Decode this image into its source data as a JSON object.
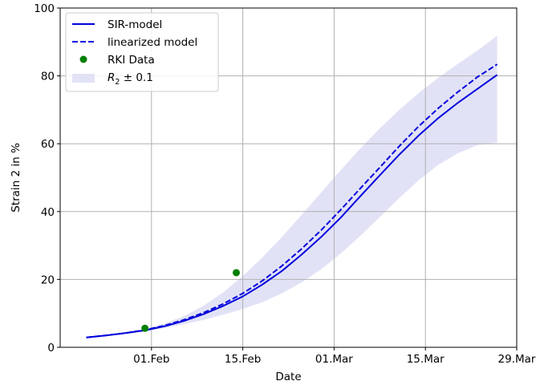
{
  "chart_data": {
    "type": "line",
    "xlabel": "Date",
    "ylabel": "Strain 2 in %",
    "ylim": [
      0,
      100
    ],
    "xlim": [
      "2021-01-18",
      "2021-03-29"
    ],
    "grid": true,
    "legend_position": "top-left",
    "x_ticks": [
      "01.Feb",
      "15.Feb",
      "01.Mar",
      "15.Mar",
      "29.Mar"
    ],
    "x_tick_dates": [
      "2021-02-01",
      "2021-02-15",
      "2021-03-01",
      "2021-03-15",
      "2021-03-29"
    ],
    "y_ticks": [
      0,
      20,
      40,
      60,
      80,
      100
    ],
    "colors": {
      "model": "#0000dd",
      "data": "#008000",
      "band": "#e2e2f7"
    },
    "series": [
      {
        "name": "SIR-model",
        "style": "solid",
        "x": [
          "2021-01-22",
          "2021-01-25",
          "2021-01-28",
          "2021-01-31",
          "2021-02-03",
          "2021-02-06",
          "2021-02-09",
          "2021-02-12",
          "2021-02-15",
          "2021-02-18",
          "2021-02-21",
          "2021-02-24",
          "2021-02-27",
          "2021-03-02",
          "2021-03-05",
          "2021-03-08",
          "2021-03-11",
          "2021-03-14",
          "2021-03-17",
          "2021-03-20",
          "2021-03-23",
          "2021-03-26"
        ],
        "y": [
          2.9,
          3.5,
          4.2,
          5.0,
          6.2,
          7.8,
          9.8,
          12.2,
          15.0,
          18.5,
          22.5,
          27.3,
          32.5,
          38.2,
          44.5,
          50.7,
          56.8,
          62.5,
          67.6,
          72.1,
          76.2,
          80.3
        ]
      },
      {
        "name": "linearized model",
        "style": "dashed",
        "x": [
          "2021-01-22",
          "2021-01-25",
          "2021-01-28",
          "2021-01-31",
          "2021-02-03",
          "2021-02-06",
          "2021-02-09",
          "2021-02-12",
          "2021-02-15",
          "2021-02-18",
          "2021-02-21",
          "2021-02-24",
          "2021-02-27",
          "2021-03-02",
          "2021-03-05",
          "2021-03-08",
          "2021-03-11",
          "2021-03-14",
          "2021-03-17",
          "2021-03-20",
          "2021-03-23",
          "2021-03-26"
        ],
        "y": [
          2.9,
          3.5,
          4.2,
          5.1,
          6.4,
          8.1,
          10.2,
          12.8,
          15.9,
          19.6,
          24.0,
          29.0,
          34.5,
          40.5,
          46.8,
          53.0,
          59.3,
          65.2,
          70.5,
          75.3,
          79.7,
          83.4
        ]
      },
      {
        "name": "RKI Data",
        "style": "markers",
        "x": [
          "2021-01-31",
          "2021-02-14"
        ],
        "y": [
          5.6,
          22.0
        ]
      },
      {
        "name": "R₂ ± 0.1",
        "style": "band",
        "x": [
          "2021-01-25",
          "2021-01-28",
          "2021-01-31",
          "2021-02-03",
          "2021-02-06",
          "2021-02-09",
          "2021-02-12",
          "2021-02-15",
          "2021-02-18",
          "2021-02-21",
          "2021-02-24",
          "2021-02-27",
          "2021-03-02",
          "2021-03-05",
          "2021-03-08",
          "2021-03-11",
          "2021-03-14",
          "2021-03-17",
          "2021-03-20",
          "2021-03-23",
          "2021-03-26"
        ],
        "upper": [
          3.6,
          4.4,
          5.4,
          7.0,
          9.2,
          12.3,
          16.2,
          21.0,
          26.5,
          32.5,
          39.0,
          45.6,
          52.2,
          58.6,
          64.5,
          70.0,
          75.0,
          79.5,
          83.6,
          87.5,
          91.8
        ],
        "lower": [
          3.4,
          4.1,
          4.8,
          5.7,
          6.8,
          8.1,
          9.6,
          11.3,
          13.3,
          15.9,
          19.1,
          23.0,
          27.6,
          32.8,
          38.4,
          44.0,
          49.3,
          53.8,
          57.2,
          59.6,
          60.3
        ]
      }
    ]
  },
  "legend": {
    "sir_label": "SIR-model",
    "linear_label": "linearized model",
    "rki_label": "RKI Data",
    "band_label_main": "R",
    "band_label_sub": "2",
    "band_label_rest": " ± 0.1"
  }
}
